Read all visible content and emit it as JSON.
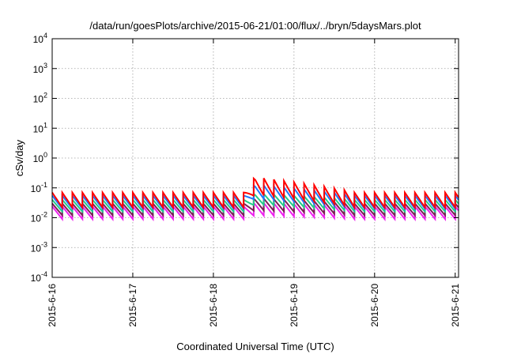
{
  "chart_data": {
    "type": "line",
    "title": "/data/run/goesPlots/archive/2015-06-21/01:00/flux/../bryn/5daysMars.plot",
    "xlabel": "Coordinated Universal Time (UTC)",
    "ylabel": "cSv/day",
    "y_scale": "log",
    "ylim": [
      0.0001,
      10000
    ],
    "y_ticks": [
      {
        "base": "10",
        "exp": "-4"
      },
      {
        "base": "10",
        "exp": "-3"
      },
      {
        "base": "10",
        "exp": "-2"
      },
      {
        "base": "10",
        "exp": "-1"
      },
      {
        "base": "10",
        "exp": "0"
      },
      {
        "base": "10",
        "exp": "1"
      },
      {
        "base": "10",
        "exp": "2"
      },
      {
        "base": "10",
        "exp": "3"
      },
      {
        "base": "10",
        "exp": "4"
      }
    ],
    "xlim": [
      "2015-06-16T00:00",
      "2015-06-21T01:00"
    ],
    "x_ticks": [
      "2015-6-16",
      "2015-6-17",
      "2015-6-18",
      "2015-6-19",
      "2015-6-20",
      "2015-6-21"
    ],
    "grid": true,
    "legend": "none",
    "series": [
      {
        "color": "#ff0000",
        "peak_base": 0.07,
        "trough_base": 0.022,
        "peak_storm": 0.23,
        "trough_storm": 0.06
      },
      {
        "color": "#1e78ff",
        "peak_base": 0.055,
        "trough_base": 0.02,
        "peak_storm": 0.13,
        "trough_storm": 0.045
      },
      {
        "color": "#22cc88",
        "peak_base": 0.04,
        "trough_base": 0.016,
        "peak_storm": 0.065,
        "trough_storm": 0.028
      },
      {
        "color": "#7a1f55",
        "peak_base": 0.03,
        "trough_base": 0.012,
        "peak_storm": 0.045,
        "trough_storm": 0.018
      },
      {
        "color": "#ee22ee",
        "peak_base": 0.024,
        "trough_base": 0.009,
        "peak_storm": 0.032,
        "trough_storm": 0.012
      }
    ],
    "storm_window": [
      "2015-06-18T09:00",
      "2015-06-19T18:00"
    ],
    "cycle_hours": 3
  }
}
